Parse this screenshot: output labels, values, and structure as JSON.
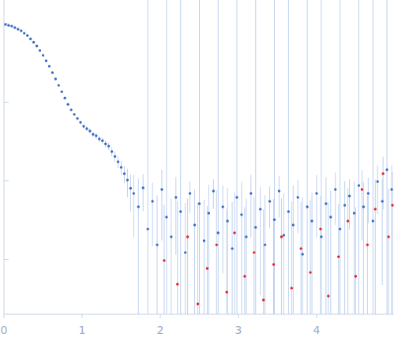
{
  "chart_data": {
    "type": "scatter",
    "log": "y",
    "tick_labels": "x",
    "xlim": [
      0,
      4.99
    ],
    "xticks": [
      0,
      1,
      2,
      3,
      4
    ],
    "ylim": [
      0.0002,
      2
    ],
    "yticks": [
      0.001,
      0.01,
      0.1,
      1
    ],
    "series": [
      {
        "color": "#3a6bc4",
        "x": [
          0.02,
          0.06,
          0.1,
          0.14,
          0.18,
          0.22,
          0.26,
          0.3,
          0.34,
          0.38,
          0.42,
          0.46,
          0.5,
          0.54,
          0.58,
          0.62,
          0.66,
          0.7,
          0.74,
          0.78,
          0.82,
          0.86,
          0.9,
          0.94,
          0.98,
          1.02,
          1.06,
          1.1,
          1.14,
          1.18,
          1.22,
          1.26,
          1.3,
          1.34,
          1.38,
          1.42,
          1.46,
          1.5,
          1.54,
          1.58,
          1.62,
          1.66,
          1.72,
          1.78,
          1.84,
          1.9,
          1.96,
          2.02,
          2.08,
          2.14,
          2.2,
          2.26,
          2.32,
          2.38,
          2.44,
          2.5,
          2.56,
          2.62,
          2.68,
          2.74,
          2.8,
          2.86,
          2.92,
          2.98,
          3.04,
          3.1,
          3.16,
          3.22,
          3.28,
          3.34,
          3.4,
          3.46,
          3.52,
          3.58,
          3.64,
          3.7,
          3.76,
          3.82,
          3.88,
          3.94,
          4.0,
          4.06,
          4.12,
          4.18,
          4.24,
          4.3,
          4.36,
          4.42,
          4.48,
          4.54,
          4.6,
          4.66,
          4.72,
          4.78,
          4.84,
          4.9,
          4.96
        ],
        "values": [
          0.975,
          0.95,
          0.93,
          0.89,
          0.85,
          0.81,
          0.755,
          0.706,
          0.64,
          0.58,
          0.52,
          0.455,
          0.395,
          0.337,
          0.287,
          0.238,
          0.198,
          0.164,
          0.136,
          0.113,
          0.094,
          0.08,
          0.07,
          0.0622,
          0.0553,
          0.0493,
          0.046,
          0.043,
          0.039,
          0.0373,
          0.034,
          0.0324,
          0.0295,
          0.0276,
          0.0235,
          0.0204,
          0.0174,
          0.0148,
          0.0123,
          0.0102,
          0.00803,
          0.0069,
          0.00466,
          0.0081,
          0.00243,
          0.00547,
          0.00153,
          0.00774,
          0.00345,
          0.00193,
          0.00614,
          0.00405,
          0.00122,
          0.0069,
          0.00273,
          0.0051,
          0.00172,
          0.00387,
          0.0074,
          0.00217,
          0.00466,
          0.00307,
          0.00137,
          0.00614,
          0.0037,
          0.00193,
          0.0069,
          0.00255,
          0.00435,
          0.00153,
          0.00547,
          0.0032,
          0.0074,
          0.00202,
          0.00405,
          0.00273,
          0.00614,
          0.00116,
          0.00466,
          0.00307,
          0.0069,
          0.00193,
          0.0051,
          0.00345,
          0.00774,
          0.00243,
          0.00488,
          0.0064,
          0.00387,
          0.0087,
          0.00466,
          0.0069,
          0.00307,
          0.00976,
          0.00547,
          0.0138,
          0.00774
        ],
        "errors": [
          0.03,
          0.01,
          0.01,
          0.01,
          0.01,
          0.01,
          0.01,
          0.01,
          0.01,
          0.01,
          0.01,
          0.008,
          0.007,
          0.006,
          0.005,
          0.004,
          0.004,
          0.003,
          0.003,
          0.003,
          0.003,
          0.003,
          0.003,
          0.003,
          0.003,
          0.003,
          0.003,
          0.003,
          0.003,
          0.003,
          0.003,
          0.003,
          0.003,
          0.003,
          0.003,
          0.003,
          0.003,
          0.003,
          0.003,
          0.004,
          0.004,
          0.005,
          0.006,
          0.004,
          2.0,
          0.004,
          0.005,
          0.006,
          2.0,
          0.004,
          0.005,
          2.0,
          0.004,
          0.003,
          0.005,
          2.0,
          0.004,
          0.005,
          0.003,
          2.0,
          0.004,
          0.005,
          0.004,
          2.0,
          0.006,
          0.004,
          0.005,
          2.0,
          0.004,
          0.005,
          0.003,
          2.0,
          0.004,
          0.005,
          2.0,
          0.006,
          0.004,
          0.005,
          2.0,
          0.004,
          0.005,
          2.0,
          0.006,
          0.004,
          0.005,
          2.0,
          0.005,
          0.004,
          0.006,
          2.0,
          0.005,
          0.004,
          2.0,
          0.006,
          0.005,
          2.0,
          0.008
        ]
      },
      {
        "color": "#e0202a",
        "x": [
          2.05,
          2.22,
          2.35,
          2.48,
          2.6,
          2.72,
          2.85,
          2.95,
          3.08,
          3.2,
          3.32,
          3.45,
          3.55,
          3.68,
          3.8,
          3.92,
          4.05,
          4.15,
          4.28,
          4.4,
          4.5,
          4.58,
          4.65,
          4.75,
          4.85,
          4.92,
          4.97
        ],
        "values": [
          0.000965,
          0.000482,
          0.00193,
          0.00027,
          0.000766,
          0.00153,
          0.000382,
          0.00217,
          0.000607,
          0.00122,
          0.000303,
          0.00086,
          0.00193,
          0.00043,
          0.00137,
          0.00068,
          0.00243,
          0.00034,
          0.00108,
          0.00307,
          0.000607,
          0.00774,
          0.00153,
          0.00435,
          0.0123,
          0.00193,
          0.00488
        ],
        "errors": [
          0.004,
          0.005,
          0.004,
          0.005,
          0.004,
          0.006,
          0.004,
          0.005,
          0.004,
          0.005,
          0.004,
          0.005,
          0.004,
          0.005,
          0.004,
          0.005,
          0.004,
          0.005,
          0.004,
          0.005,
          0.004,
          0.006,
          0.005,
          0.006,
          0.008,
          0.006,
          0.008
        ]
      }
    ]
  }
}
